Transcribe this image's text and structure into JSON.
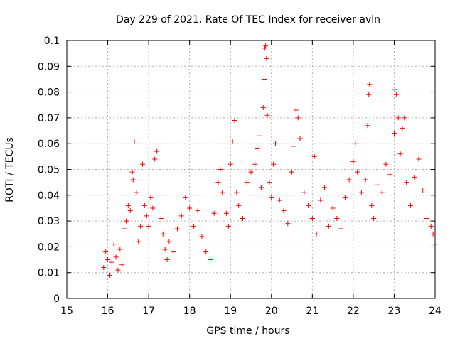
{
  "chart_data": {
    "type": "scatter",
    "title": "Day 229 of 2021, Rate Of TEC Index for receiver avln",
    "xlabel": "GPS time / hours",
    "ylabel": "ROTI / TECUs",
    "xlim": [
      15,
      24
    ],
    "ylim": [
      0,
      0.1
    ],
    "x_ticks": [
      15,
      16,
      17,
      18,
      19,
      20,
      21,
      22,
      23,
      24
    ],
    "y_ticks": [
      0,
      0.01,
      0.02,
      0.03,
      0.04,
      0.05,
      0.06,
      0.07,
      0.08,
      0.09,
      0.1
    ],
    "x_tick_labels": [
      "15",
      "16",
      "17",
      "18",
      "19",
      "20",
      "21",
      "22",
      "23",
      "24"
    ],
    "y_tick_labels": [
      "0",
      "0.01",
      "0.02",
      "0.03",
      "0.04",
      "0.05",
      "0.06",
      "0.07",
      "0.08",
      "0.09",
      "0.1"
    ],
    "grid": true,
    "marker": "+",
    "color": "#ff0000",
    "series": [
      {
        "points": [
          [
            15.9,
            0.012
          ],
          [
            15.95,
            0.018
          ],
          [
            16.0,
            0.015
          ],
          [
            16.05,
            0.009
          ],
          [
            16.1,
            0.014
          ],
          [
            16.15,
            0.021
          ],
          [
            16.2,
            0.016
          ],
          [
            16.25,
            0.011
          ],
          [
            16.3,
            0.019
          ],
          [
            16.35,
            0.013
          ],
          [
            16.4,
            0.027
          ],
          [
            16.45,
            0.03
          ],
          [
            16.5,
            0.036
          ],
          [
            16.55,
            0.034
          ],
          [
            16.6,
            0.049
          ],
          [
            16.62,
            0.046
          ],
          [
            16.65,
            0.061
          ],
          [
            16.7,
            0.041
          ],
          [
            16.75,
            0.022
          ],
          [
            16.8,
            0.028
          ],
          [
            16.85,
            0.052
          ],
          [
            16.9,
            0.036
          ],
          [
            16.95,
            0.032
          ],
          [
            17.0,
            0.028
          ],
          [
            17.05,
            0.039
          ],
          [
            17.1,
            0.035
          ],
          [
            17.15,
            0.054
          ],
          [
            17.2,
            0.057
          ],
          [
            17.25,
            0.042
          ],
          [
            17.3,
            0.031
          ],
          [
            17.35,
            0.025
          ],
          [
            17.4,
            0.019
          ],
          [
            17.45,
            0.015
          ],
          [
            17.5,
            0.022
          ],
          [
            17.6,
            0.018
          ],
          [
            17.7,
            0.027
          ],
          [
            17.8,
            0.032
          ],
          [
            17.9,
            0.039
          ],
          [
            18.0,
            0.035
          ],
          [
            18.1,
            0.028
          ],
          [
            18.2,
            0.034
          ],
          [
            18.3,
            0.024
          ],
          [
            18.4,
            0.018
          ],
          [
            18.5,
            0.015
          ],
          [
            18.6,
            0.033
          ],
          [
            18.7,
            0.045
          ],
          [
            18.75,
            0.05
          ],
          [
            18.8,
            0.041
          ],
          [
            18.9,
            0.033
          ],
          [
            18.95,
            0.028
          ],
          [
            19.0,
            0.052
          ],
          [
            19.05,
            0.061
          ],
          [
            19.1,
            0.069
          ],
          [
            19.15,
            0.041
          ],
          [
            19.2,
            0.036
          ],
          [
            19.3,
            0.031
          ],
          [
            19.4,
            0.045
          ],
          [
            19.5,
            0.049
          ],
          [
            19.6,
            0.052
          ],
          [
            19.65,
            0.058
          ],
          [
            19.7,
            0.063
          ],
          [
            19.75,
            0.043
          ],
          [
            19.8,
            0.074
          ],
          [
            19.82,
            0.085
          ],
          [
            19.84,
            0.097
          ],
          [
            19.86,
            0.098
          ],
          [
            19.88,
            0.093
          ],
          [
            19.9,
            0.071
          ],
          [
            19.95,
            0.045
          ],
          [
            20.0,
            0.039
          ],
          [
            20.05,
            0.052
          ],
          [
            20.1,
            0.06
          ],
          [
            20.2,
            0.038
          ],
          [
            20.3,
            0.034
          ],
          [
            20.4,
            0.029
          ],
          [
            20.5,
            0.049
          ],
          [
            20.55,
            0.059
          ],
          [
            20.6,
            0.073
          ],
          [
            20.65,
            0.07
          ],
          [
            20.7,
            0.062
          ],
          [
            20.8,
            0.041
          ],
          [
            20.9,
            0.036
          ],
          [
            21.0,
            0.031
          ],
          [
            21.05,
            0.055
          ],
          [
            21.1,
            0.025
          ],
          [
            21.2,
            0.038
          ],
          [
            21.3,
            0.043
          ],
          [
            21.4,
            0.028
          ],
          [
            21.5,
            0.035
          ],
          [
            21.6,
            0.031
          ],
          [
            21.7,
            0.027
          ],
          [
            21.8,
            0.039
          ],
          [
            21.9,
            0.046
          ],
          [
            22.0,
            0.053
          ],
          [
            22.05,
            0.06
          ],
          [
            22.1,
            0.049
          ],
          [
            22.2,
            0.041
          ],
          [
            22.3,
            0.046
          ],
          [
            22.35,
            0.067
          ],
          [
            22.38,
            0.079
          ],
          [
            22.4,
            0.083
          ],
          [
            22.45,
            0.036
          ],
          [
            22.5,
            0.031
          ],
          [
            22.6,
            0.044
          ],
          [
            22.7,
            0.041
          ],
          [
            22.8,
            0.052
          ],
          [
            22.9,
            0.048
          ],
          [
            23.0,
            0.064
          ],
          [
            23.02,
            0.081
          ],
          [
            23.05,
            0.079
          ],
          [
            23.1,
            0.07
          ],
          [
            23.15,
            0.056
          ],
          [
            23.2,
            0.066
          ],
          [
            23.25,
            0.07
          ],
          [
            23.3,
            0.045
          ],
          [
            23.4,
            0.036
          ],
          [
            23.5,
            0.047
          ],
          [
            23.6,
            0.054
          ],
          [
            23.7,
            0.042
          ],
          [
            23.8,
            0.031
          ],
          [
            23.9,
            0.028
          ],
          [
            23.95,
            0.025
          ],
          [
            24.0,
            0.021
          ]
        ]
      }
    ]
  }
}
